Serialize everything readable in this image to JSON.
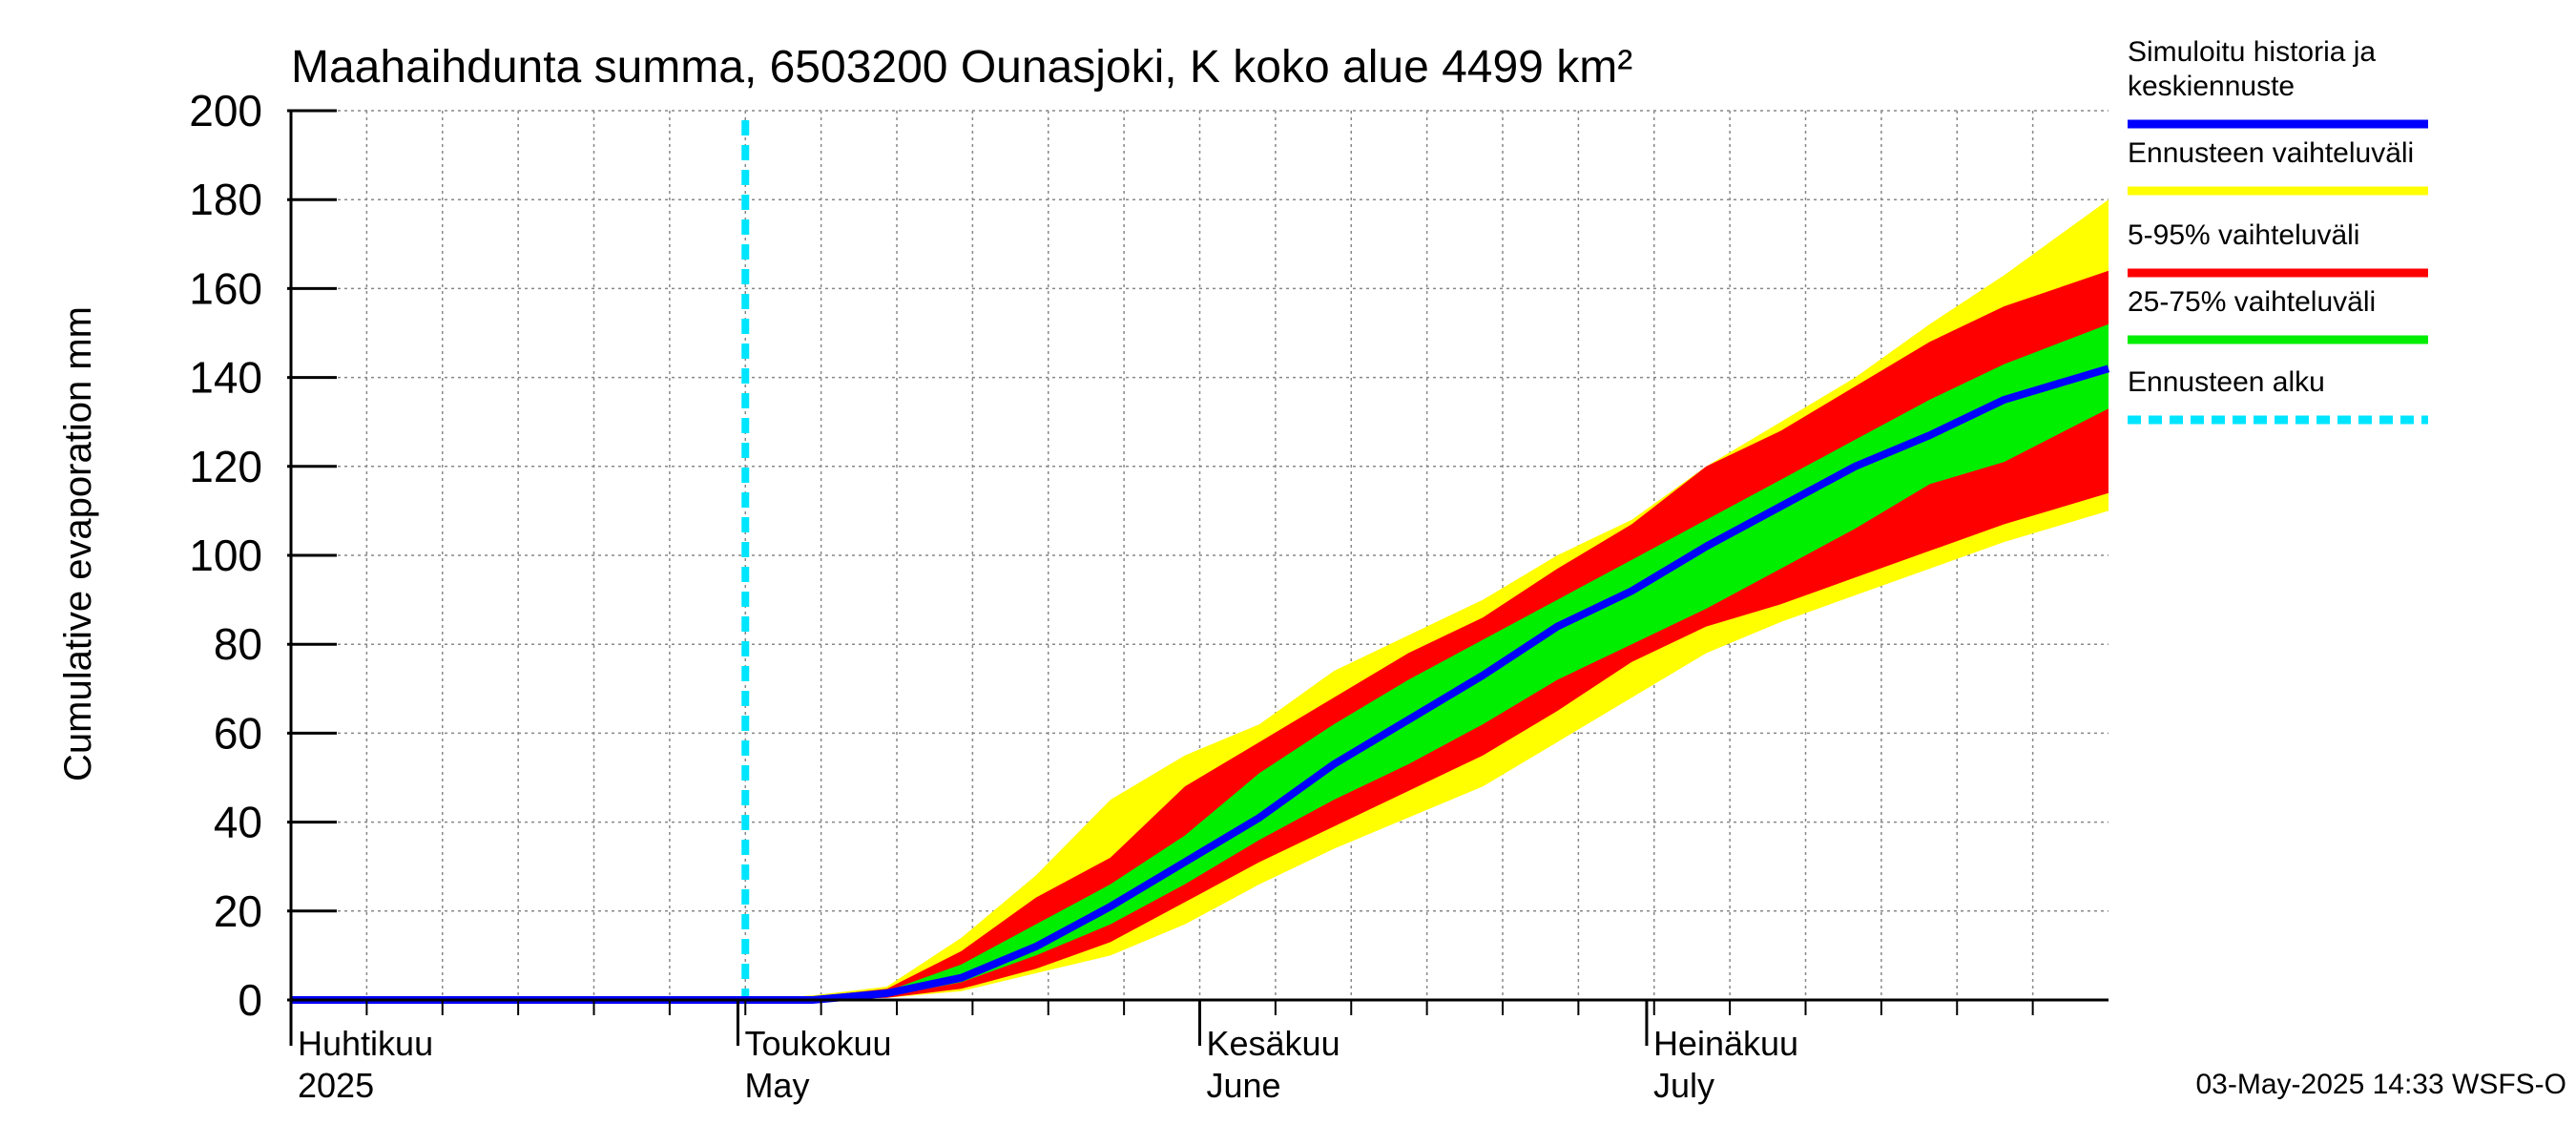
{
  "chart_data": {
    "type": "area",
    "title": "Maahaihdunta summa, 6503200 Ounasjoki, K koko alue 4499 km²",
    "ylabel": "Cumulative evaporation   mm",
    "xlabel": "",
    "ylim": [
      0,
      200
    ],
    "y_ticks": [
      "0",
      "20",
      "40",
      "60",
      "80",
      "100",
      "120",
      "140",
      "160",
      "180",
      "200"
    ],
    "x_unit": "days since 2025-04-01",
    "xlim": [
      0,
      122
    ],
    "forecast_start_day": 30.5,
    "month_labels": [
      {
        "fi": "Huhtikuu",
        "en": "2025",
        "day": 0
      },
      {
        "fi": "Toukokuu",
        "en": "May",
        "day": 30
      },
      {
        "fi": "Kesäkuu",
        "en": "June",
        "day": 61
      },
      {
        "fi": "Heinäkuu",
        "en": "July",
        "day": 91
      }
    ],
    "x": [
      0,
      30,
      35,
      40,
      45,
      50,
      55,
      60,
      65,
      70,
      75,
      80,
      85,
      90,
      95,
      100,
      105,
      110,
      115,
      122
    ],
    "series": [
      {
        "name": "Ennusteen vaihteluväli",
        "lower": [
          0,
          0,
          0,
          0.5,
          2,
          6,
          10,
          17,
          26,
          34,
          41,
          48,
          58,
          68,
          78,
          85,
          91,
          97,
          103,
          110
        ],
        "upper": [
          0,
          0,
          1,
          3,
          14,
          28,
          45,
          55,
          62,
          74,
          82,
          90,
          100,
          108,
          120,
          130,
          140,
          152,
          163,
          180
        ]
      },
      {
        "name": "5-95% vaihteluväli",
        "lower": [
          0,
          0,
          0,
          0.5,
          2.5,
          7,
          13,
          22,
          31,
          39,
          47,
          55,
          65,
          76,
          84,
          89,
          95,
          101,
          107,
          114
        ],
        "upper": [
          0,
          0,
          0.7,
          2.5,
          11,
          23,
          32,
          48,
          58,
          68,
          78,
          86,
          97,
          107,
          120,
          128,
          138,
          148,
          156,
          164
        ]
      },
      {
        "name": "25-75% vaihteluväli",
        "lower": [
          0,
          0,
          0,
          0.8,
          4,
          10,
          17,
          26,
          36,
          45,
          53,
          62,
          72,
          80,
          88,
          97,
          106,
          116,
          121,
          133
        ],
        "upper": [
          0,
          0,
          0.5,
          2,
          8,
          17,
          26,
          37,
          51,
          62,
          72,
          81,
          90,
          99,
          108,
          117,
          126,
          135,
          143,
          152
        ]
      },
      {
        "name": "Simuloitu historia ja keskiennuste",
        "values": [
          0,
          0,
          0,
          1.5,
          5,
          12,
          21,
          31,
          41,
          53,
          63,
          73,
          84,
          92,
          102,
          111,
          120,
          127,
          135,
          142
        ]
      }
    ],
    "legend": [
      {
        "label_lines": [
          "Simuloitu historia ja",
          "keskiennuste"
        ],
        "color": "#0000ff",
        "style": "solid"
      },
      {
        "label_lines": [
          "Ennusteen vaihteluväli"
        ],
        "color": "#ffff00",
        "style": "solid"
      },
      {
        "label_lines": [
          "5-95% vaihteluväli"
        ],
        "color": "#ff0000",
        "style": "solid"
      },
      {
        "label_lines": [
          "25-75% vaihteluväli"
        ],
        "color": "#00ee00",
        "style": "solid"
      },
      {
        "label_lines": [
          "Ennusteen alku"
        ],
        "color": "#00e5ff",
        "style": "dashed"
      }
    ],
    "legend_position": "right",
    "grid": true
  },
  "colors": {
    "history_line": "#0000ff",
    "band_outer": "#ffff00",
    "band_5_95": "#ff0000",
    "band_25_75": "#00ee00",
    "forecast_start": "#00e5ff",
    "grid": "#888888",
    "axis": "#000000"
  },
  "timestamp": "03-May-2025 14:33 WSFS-O"
}
